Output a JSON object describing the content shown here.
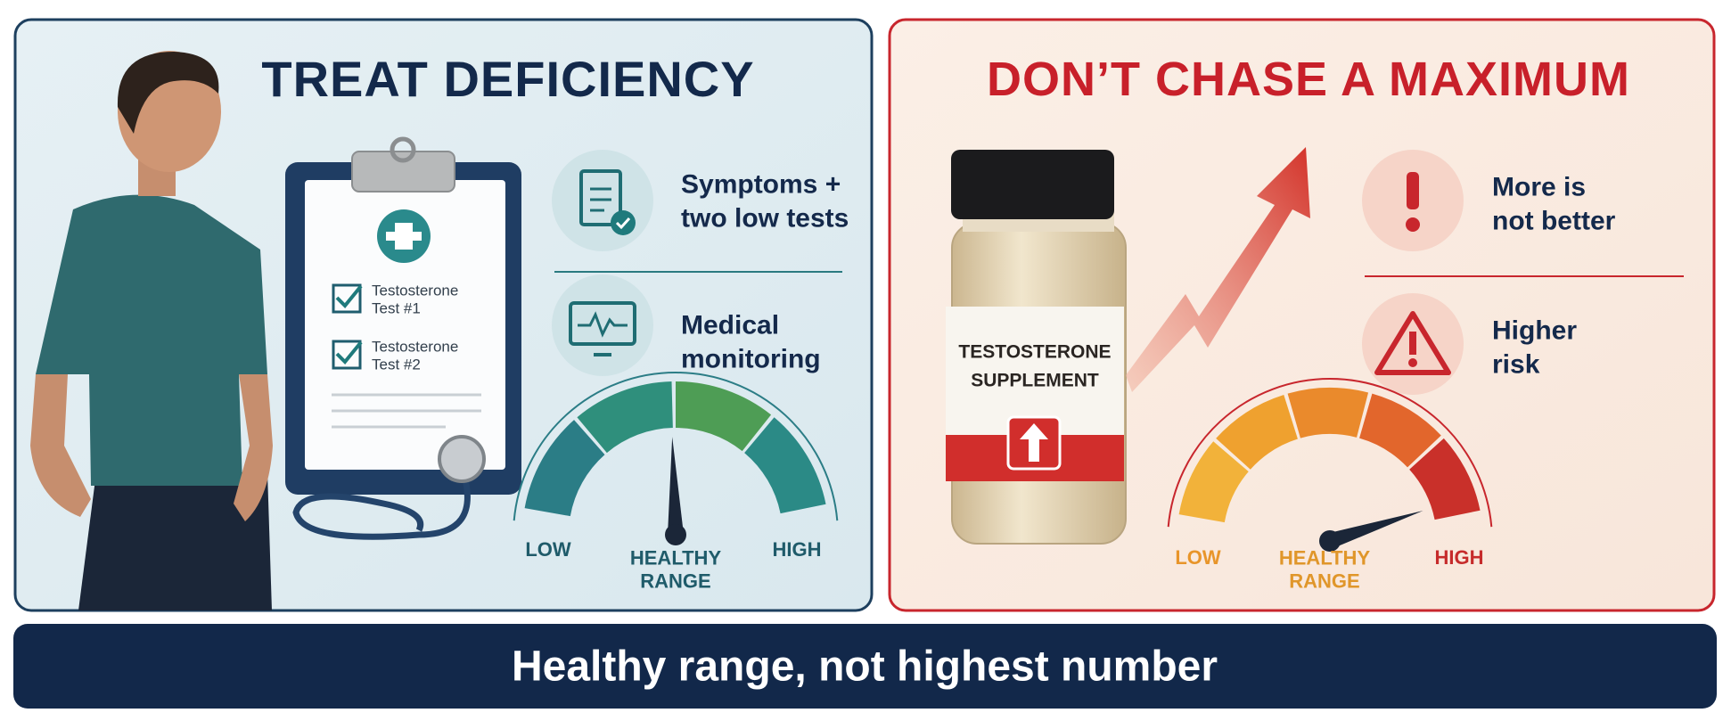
{
  "left_panel": {
    "title": "TREAT DEFICIENCY",
    "clipboard_items": [
      "Testosterone\nTest #1",
      "Testosterone\nTest #2"
    ],
    "points": [
      "Symptoms +\ntwo low tests",
      "Medical\nmonitoring"
    ],
    "gauge_labels": [
      "LOW",
      "HEALTHY\nRANGE",
      "HIGH"
    ]
  },
  "right_panel": {
    "title": "DON’T CHASE A MAXIMUM",
    "bottle_label": "TESTOSTERONE\nSUPPLEMENT",
    "points": [
      "More is\nnot better",
      "Higher\nrisk"
    ],
    "gauge_labels": [
      "LOW",
      "HEALTHY\nRANGE",
      "HIGH"
    ]
  },
  "footer": {
    "text": "Healthy range, not highest number"
  }
}
